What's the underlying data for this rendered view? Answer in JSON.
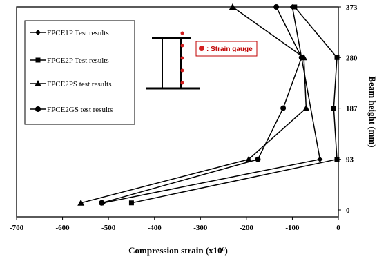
{
  "chart_data": {
    "type": "line",
    "xlabel": "Compression strain (x10⁶)",
    "ylabel": "Beam height (mm)",
    "xlim": [
      -700,
      0
    ],
    "ylim": [
      0,
      373
    ],
    "x_ticks": [
      "-700",
      "-600",
      "-500",
      "-400",
      "-300",
      "-200",
      "-100",
      "0"
    ],
    "y_ticks": [
      "0",
      "93",
      "187",
      "280",
      "373"
    ],
    "x_tick_values": [
      -700,
      -600,
      -500,
      -400,
      -300,
      -200,
      -100,
      0
    ],
    "y_tick_values": [
      0,
      93,
      187,
      280,
      373
    ],
    "legend_position": "top-left",
    "series": [
      {
        "name": "FPCE1P Test results",
        "marker": "diamond",
        "points": [
          {
            "x": -512,
            "y": 13
          },
          {
            "x": -40,
            "y": 93
          },
          {
            "x": -80,
            "y": 280
          },
          {
            "x": -100,
            "y": 373
          }
        ]
      },
      {
        "name": "FPCE2P Test results",
        "marker": "square",
        "points": [
          {
            "x": -450,
            "y": 13
          },
          {
            "x": -3,
            "y": 93
          },
          {
            "x": -10,
            "y": 187
          },
          {
            "x": -3,
            "y": 280
          },
          {
            "x": -95,
            "y": 373
          }
        ]
      },
      {
        "name": "FPCE2PS test results",
        "marker": "triangle",
        "points": [
          {
            "x": -560,
            "y": 13
          },
          {
            "x": -195,
            "y": 93
          },
          {
            "x": -70,
            "y": 187
          },
          {
            "x": -75,
            "y": 280
          },
          {
            "x": -230,
            "y": 373
          }
        ]
      },
      {
        "name": "FPCE2GS test results",
        "marker": "circle",
        "points": [
          {
            "x": -515,
            "y": 13
          },
          {
            "x": -175,
            "y": 93
          },
          {
            "x": -120,
            "y": 187
          },
          {
            "x": -80,
            "y": 280
          },
          {
            "x": -135,
            "y": 373
          }
        ]
      }
    ],
    "inset_label": ": Strain gauge",
    "inset_color": "#d21f1f"
  }
}
